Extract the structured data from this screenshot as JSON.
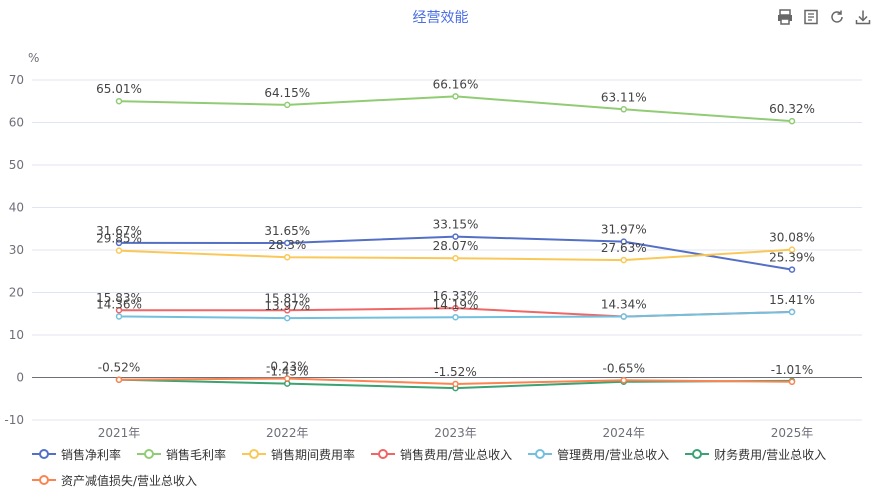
{
  "header": {
    "title": "经营效能",
    "tools": [
      {
        "name": "print-icon"
      },
      {
        "name": "data-view-icon"
      },
      {
        "name": "refresh-icon"
      },
      {
        "name": "download-icon"
      }
    ]
  },
  "chart_data": {
    "type": "line",
    "title": "经营效能",
    "ylabel": "%",
    "ylim": [
      -10,
      70
    ],
    "yticks": [
      -10,
      0,
      10,
      20,
      30,
      40,
      50,
      60,
      70
    ],
    "grid": true,
    "legend_position": "bottom",
    "categories": [
      "2021年",
      "2022年",
      "2023年",
      "2024年",
      "2025年"
    ],
    "series": [
      {
        "name": "销售净利率",
        "color": "#5470c6",
        "values": [
          31.67,
          31.65,
          33.15,
          31.97,
          25.39
        ],
        "labels": [
          "31.67%",
          "31.65%",
          "33.15%",
          "31.97%",
          "25.39%"
        ]
      },
      {
        "name": "销售毛利率",
        "color": "#91cc75",
        "values": [
          65.01,
          64.15,
          66.16,
          63.11,
          60.32
        ],
        "labels": [
          "65.01%",
          "64.15%",
          "66.16%",
          "63.11%",
          "60.32%"
        ]
      },
      {
        "name": "销售期间费用率",
        "color": "#fac858",
        "values": [
          29.85,
          28.3,
          28.07,
          27.63,
          30.08
        ],
        "labels": [
          "29.85%",
          "28.3%",
          "28.07%",
          "27.63%",
          "30.08%"
        ]
      },
      {
        "name": "销售费用/营业总收入",
        "color": "#ee6666",
        "values": [
          15.83,
          15.81,
          16.33,
          14.34,
          15.44
        ],
        "labels": [
          "15.83%",
          "15.81%",
          "16.33%",
          "",
          ""
        ]
      },
      {
        "name": "管理费用/营业总收入",
        "color": "#73c0de",
        "values": [
          14.36,
          13.97,
          14.19,
          14.34,
          15.41
        ],
        "labels": [
          "14.36%",
          "13.97%",
          "14.19%",
          "14.34%",
          "15.41%"
        ]
      },
      {
        "name": "财务费用/营业总收入",
        "color": "#3ba272",
        "values": [
          -0.52,
          -1.43,
          -2.5,
          -1.0,
          -0.8
        ],
        "labels": [
          "",
          "-1.43%",
          "",
          "",
          ""
        ]
      },
      {
        "name": "资产减值损失/营业总收入",
        "color": "#fc8452",
        "values": [
          -0.52,
          -0.23,
          -1.52,
          -0.65,
          -1.01
        ],
        "labels": [
          "-0.52%",
          "-0.23%",
          "-1.52%",
          "-0.65%",
          "-1.01%"
        ]
      }
    ]
  }
}
